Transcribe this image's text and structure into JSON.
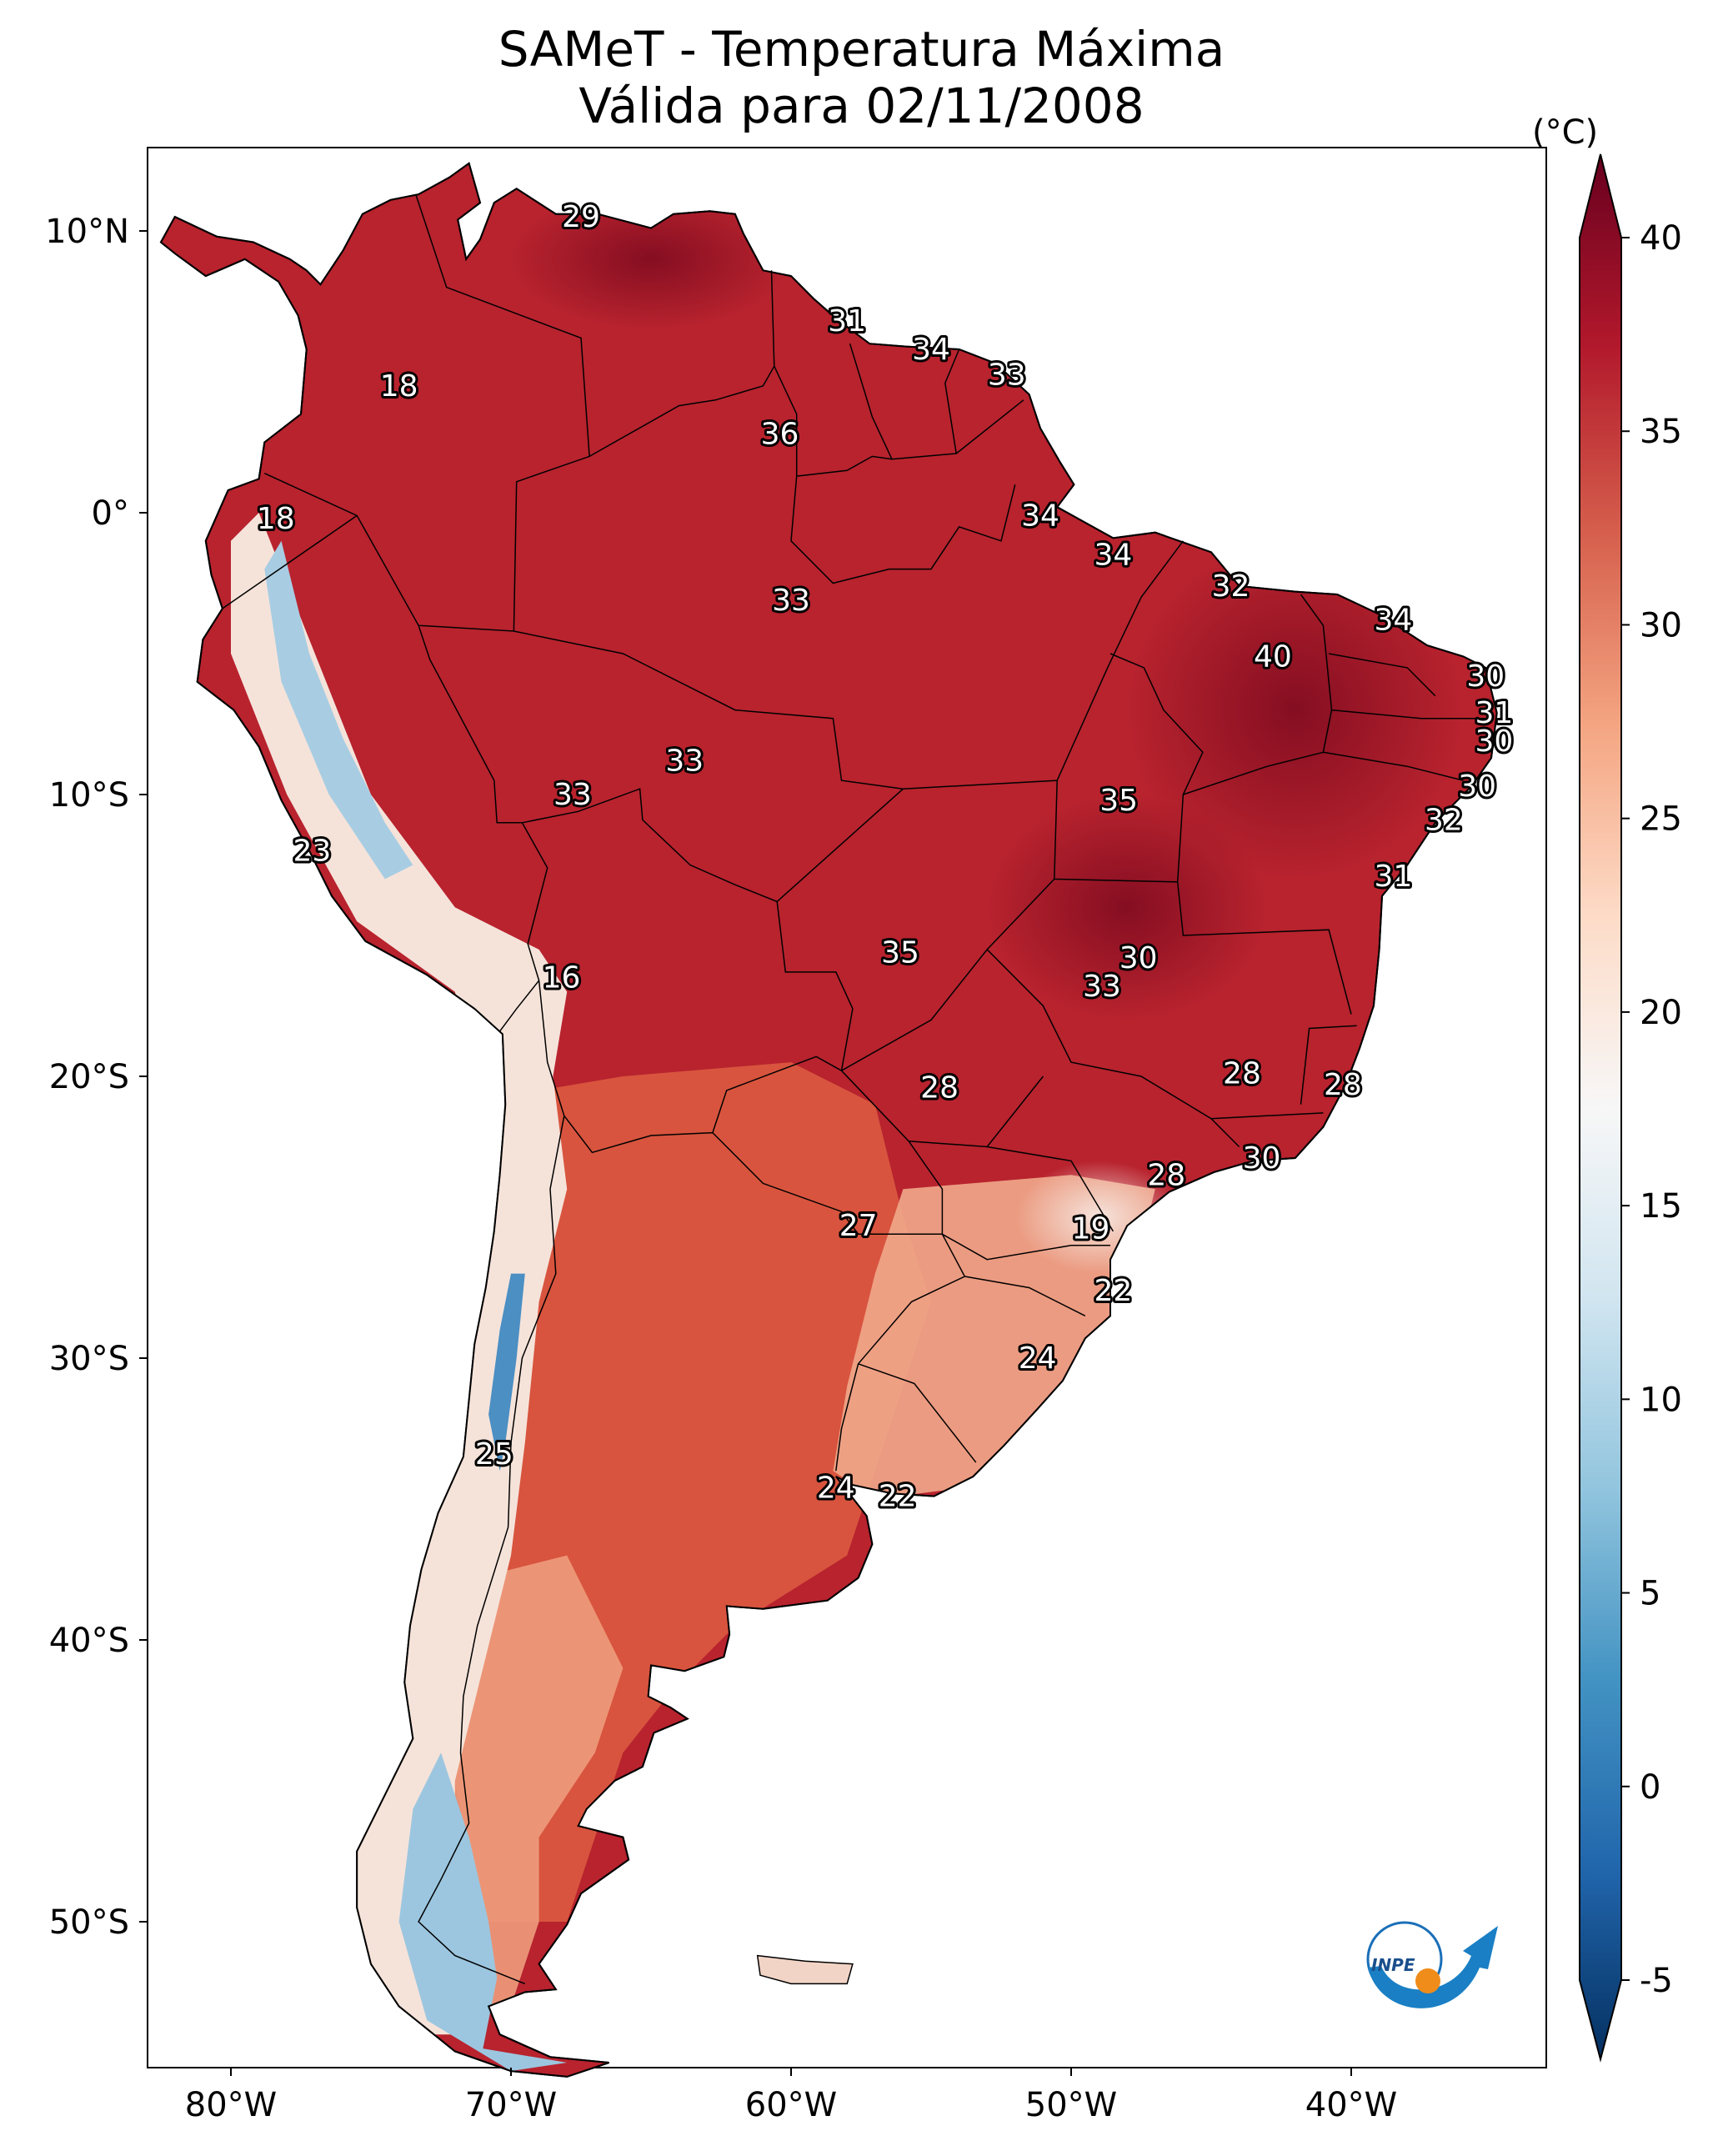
{
  "title": "SAMeT - Temperatura Máxima",
  "subtitle": "Válida para 02/11/2008",
  "axes": {
    "lon_ticks": [
      "80°W",
      "70°W",
      "60°W",
      "50°W",
      "40°W"
    ],
    "lat_ticks": [
      "10°N",
      "0°",
      "10°S",
      "20°S",
      "30°S",
      "40°S",
      "50°S"
    ]
  },
  "colorbar": {
    "unit": "(°C)",
    "ticks": [
      "40",
      "35",
      "30",
      "25",
      "20",
      "15",
      "10",
      "5",
      "0",
      "-5"
    ],
    "min": -5,
    "max": 40,
    "colors": [
      "#053061",
      "#2166ac",
      "#4393c3",
      "#92c5de",
      "#d1e5f0",
      "#f7f7f7",
      "#fddbc7",
      "#f4a582",
      "#d6604d",
      "#b2182b",
      "#67001f"
    ]
  },
  "logo": {
    "text": "INPE"
  },
  "map_colors": {
    "ocean": "#ffffff",
    "hot": "#b8232e",
    "very_hot": "#8f0f22",
    "warm": "#d95445",
    "mild": "#f1a07e",
    "cool": "#f4ddd0",
    "cold": "#9cc6df",
    "coldest": "#4b8fc3",
    "border": "#000000"
  },
  "labels": [
    {
      "name": "label-29-venezuela",
      "text": "29",
      "lon": -67.5,
      "lat": 10.5
    },
    {
      "name": "label-18-colombia",
      "text": "18",
      "lon": -74,
      "lat": 4.5
    },
    {
      "name": "label-31-guyana",
      "text": "31",
      "lon": -58,
      "lat": 6.8
    },
    {
      "name": "label-34-suriname",
      "text": "34",
      "lon": -55,
      "lat": 5.8
    },
    {
      "name": "label-33-frguiana",
      "text": "33",
      "lon": -52.3,
      "lat": 4.9
    },
    {
      "name": "label-36-roraima",
      "text": "36",
      "lon": -60.4,
      "lat": 2.8
    },
    {
      "name": "label-18-ecuador",
      "text": "18",
      "lon": -78.4,
      "lat": -0.2
    },
    {
      "name": "label-34-amapa",
      "text": "34",
      "lon": -51.1,
      "lat": -0.1
    },
    {
      "name": "label-34-para",
      "text": "34",
      "lon": -48.5,
      "lat": -1.5
    },
    {
      "name": "label-33-amazonas",
      "text": "33",
      "lon": -60,
      "lat": -3.1
    },
    {
      "name": "label-32-maranhao",
      "text": "32",
      "lon": -44.3,
      "lat": -2.6
    },
    {
      "name": "label-34-ceara",
      "text": "34",
      "lon": -38.5,
      "lat": -3.8
    },
    {
      "name": "label-40-piaui",
      "text": "40",
      "lon": -42.8,
      "lat": -5.1
    },
    {
      "name": "label-30-rn",
      "text": "30",
      "lon": -35.2,
      "lat": -5.8
    },
    {
      "name": "label-31-pb",
      "text": "31",
      "lon": -34.9,
      "lat": -7.1
    },
    {
      "name": "label-30-pe",
      "text": "30",
      "lon": -34.9,
      "lat": -8.1
    },
    {
      "name": "label-33-acre",
      "text": "33",
      "lon": -63.8,
      "lat": -8.8
    },
    {
      "name": "label-33-acre-west",
      "text": "33",
      "lon": -67.8,
      "lat": -10
    },
    {
      "name": "label-35-tocantins",
      "text": "35",
      "lon": -48.3,
      "lat": -10.2
    },
    {
      "name": "label-30-alagoas",
      "text": "30",
      "lon": -35.5,
      "lat": -9.7
    },
    {
      "name": "label-32-sergipe",
      "text": "32",
      "lon": -36.7,
      "lat": -10.9
    },
    {
      "name": "label-23-peru",
      "text": "23",
      "lon": -77.1,
      "lat": -12
    },
    {
      "name": "label-31-bahia",
      "text": "31",
      "lon": -38.5,
      "lat": -12.9
    },
    {
      "name": "label-16-bolivia",
      "text": "16",
      "lon": -68.2,
      "lat": -16.5
    },
    {
      "name": "label-35-mt",
      "text": "35",
      "lon": -56.1,
      "lat": -15.6
    },
    {
      "name": "label-30-goias",
      "text": "30",
      "lon": -47.6,
      "lat": -15.8
    },
    {
      "name": "label-33-goias",
      "text": "33",
      "lon": -48.9,
      "lat": -16.8
    },
    {
      "name": "label-28-ms",
      "text": "28",
      "lon": -54.7,
      "lat": -20.4
    },
    {
      "name": "label-28-mg",
      "text": "28",
      "lon": -43.9,
      "lat": -19.9
    },
    {
      "name": "label-28-es",
      "text": "28",
      "lon": -40.3,
      "lat": -20.3
    },
    {
      "name": "label-28-sp",
      "text": "28",
      "lon": -46.6,
      "lat": -23.5
    },
    {
      "name": "label-30-rj",
      "text": "30",
      "lon": -43.2,
      "lat": -22.9
    },
    {
      "name": "label-27-paraguay",
      "text": "27",
      "lon": -57.6,
      "lat": -25.3
    },
    {
      "name": "label-19-parana",
      "text": "19",
      "lon": -49.3,
      "lat": -25.4
    },
    {
      "name": "label-22-sc",
      "text": "22",
      "lon": -48.5,
      "lat": -27.6
    },
    {
      "name": "label-24-rs",
      "text": "24",
      "lon": -51.2,
      "lat": -30
    },
    {
      "name": "label-25-chile",
      "text": "25",
      "lon": -70.6,
      "lat": -33.4
    },
    {
      "name": "label-24-buenosaires",
      "text": "24",
      "lon": -58.4,
      "lat": -34.6
    },
    {
      "name": "label-22-montevideo",
      "text": "22",
      "lon": -56.2,
      "lat": -34.9
    }
  ]
}
